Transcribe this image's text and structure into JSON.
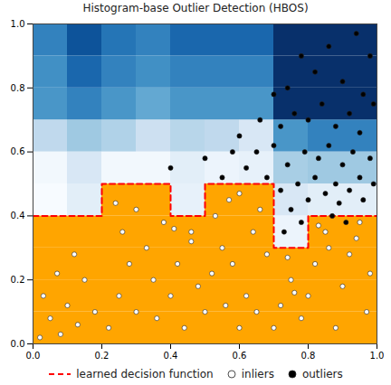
{
  "chart_data": {
    "type": "scatter",
    "title": "Histogram-base Outlier Detection (HBOS)",
    "xlim": [
      0,
      1
    ],
    "ylim": [
      0,
      1
    ],
    "xticks": [
      {
        "value": 0,
        "label": "0.0"
      },
      {
        "value": 0.2,
        "label": "0.2"
      },
      {
        "value": 0.4,
        "label": "0.4"
      },
      {
        "value": 0.6,
        "label": "0.6"
      },
      {
        "value": 0.8,
        "label": "0.8"
      },
      {
        "value": 1,
        "label": "1.0"
      }
    ],
    "yticks": [
      {
        "value": 0,
        "label": "0.0"
      },
      {
        "value": 0.2,
        "label": "0.2"
      },
      {
        "value": 0.4,
        "label": "0.4"
      },
      {
        "value": 0.6,
        "label": "0.6"
      },
      {
        "value": 0.8,
        "label": "0.8"
      },
      {
        "value": 1,
        "label": "1.0"
      }
    ],
    "grid": false,
    "cells": {
      "x_edges": [
        0,
        0.1,
        0.2,
        0.3,
        0.4,
        0.5,
        0.6,
        0.7,
        0.8,
        0.9,
        1
      ],
      "y_edges": [
        0,
        0.1,
        0.2,
        0.3,
        0.4,
        0.5,
        0.6,
        0.7,
        0.8,
        0.9,
        1
      ],
      "threshold": 3,
      "values": [
        [
          1,
          1,
          1,
          1,
          1,
          1,
          1,
          1,
          1,
          1
        ],
        [
          1,
          1,
          1,
          1,
          1,
          1,
          1,
          1.5,
          1,
          1
        ],
        [
          1.5,
          1.5,
          1.5,
          1.5,
          1.5,
          1.5,
          1.5,
          2,
          1.5,
          1.5
        ],
        [
          2,
          2,
          2,
          2,
          2,
          2,
          2,
          3.4,
          2,
          2
        ],
        [
          3.2,
          3.6,
          2.5,
          2.5,
          3.5,
          2.5,
          2.5,
          3.8,
          3.6,
          3.6
        ],
        [
          3.3,
          3.8,
          3.3,
          3.3,
          3.6,
          3.4,
          3.5,
          4.5,
          4.6,
          4.6
        ],
        [
          4.2,
          4.6,
          4.4,
          4.0,
          4.3,
          4.2,
          3.8,
          5.5,
          5.8,
          5.8
        ],
        [
          5.5,
          5.8,
          5.5,
          5.2,
          5.5,
          5.5,
          5.5,
          7,
          7,
          7
        ],
        [
          5.6,
          6.2,
          5.8,
          5.6,
          5.8,
          5.8,
          5.8,
          7,
          7,
          7
        ],
        [
          5.8,
          6.5,
          6.0,
          5.8,
          6.2,
          6.2,
          6.2,
          7,
          7,
          7
        ]
      ]
    },
    "series": [
      {
        "name": "learned decision function",
        "type": "line",
        "color": "red",
        "line_style": "dashed",
        "x": [
          0,
          0.2,
          0.2,
          0.4,
          0.4,
          0.5,
          0.5,
          0.7,
          0.7,
          0.8,
          0.8,
          1
        ],
        "y": [
          0.4,
          0.4,
          0.5,
          0.5,
          0.4,
          0.4,
          0.5,
          0.5,
          0.3,
          0.3,
          0.4,
          0.4
        ]
      },
      {
        "name": "inliers",
        "type": "scatter",
        "color": "white",
        "marker": "circle",
        "x": [
          0.02,
          0.05,
          0.08,
          0.1,
          0.13,
          0.03,
          0.15,
          0.12,
          0.18,
          0.07,
          0.22,
          0.25,
          0.28,
          0.3,
          0.26,
          0.33,
          0.35,
          0.38,
          0.3,
          0.24,
          0.36,
          0.4,
          0.42,
          0.44,
          0.46,
          0.48,
          0.41,
          0.5,
          0.52,
          0.55,
          0.53,
          0.57,
          0.6,
          0.62,
          0.58,
          0.64,
          0.66,
          0.6,
          0.68,
          0.65,
          0.7,
          0.72,
          0.75,
          0.74,
          0.78,
          0.8,
          0.82,
          0.85,
          0.88,
          0.9,
          0.92,
          0.95,
          0.97,
          0.98,
          0.86,
          0.94,
          0.83,
          0.76,
          0.56,
          0.46
        ],
        "y": [
          0.02,
          0.08,
          0.03,
          0.12,
          0.06,
          0.15,
          0.2,
          0.28,
          0.1,
          0.22,
          0.05,
          0.15,
          0.25,
          0.1,
          0.35,
          0.3,
          0.2,
          0.38,
          0.42,
          0.44,
          0.08,
          0.15,
          0.25,
          0.05,
          0.32,
          0.18,
          0.36,
          0.1,
          0.22,
          0.3,
          0.4,
          0.45,
          0.05,
          0.15,
          0.25,
          0.35,
          0.42,
          0.47,
          0.28,
          0.1,
          0.05,
          0.12,
          0.2,
          0.27,
          0.08,
          0.15,
          0.25,
          0.35,
          0.05,
          0.18,
          0.28,
          0.38,
          0.1,
          0.22,
          0.3,
          0.33,
          0.37,
          0.16,
          0.12,
          0.35
        ]
      },
      {
        "name": "outliers",
        "type": "scatter",
        "color": "black",
        "marker": "circle",
        "x": [
          0.62,
          0.65,
          0.68,
          0.7,
          0.72,
          0.74,
          0.75,
          0.77,
          0.78,
          0.79,
          0.8,
          0.82,
          0.83,
          0.85,
          0.86,
          0.88,
          0.89,
          0.9,
          0.92,
          0.93,
          0.95,
          0.96,
          0.98,
          0.99,
          0.72,
          0.76,
          0.8,
          0.84,
          0.88,
          0.92,
          0.96,
          0.74,
          0.82,
          0.9,
          0.98,
          0.86,
          0.94,
          0.6,
          0.58,
          0.55,
          0.4,
          0.5,
          0.66,
          0.7,
          0.78,
          0.95,
          0.99,
          0.87,
          0.91,
          0.73
        ],
        "y": [
          0.55,
          0.6,
          0.52,
          0.62,
          0.48,
          0.56,
          0.42,
          0.5,
          0.38,
          0.6,
          0.45,
          0.52,
          0.58,
          0.47,
          0.62,
          0.5,
          0.44,
          0.56,
          0.48,
          0.6,
          0.52,
          0.45,
          0.58,
          0.5,
          0.68,
          0.72,
          0.7,
          0.75,
          0.68,
          0.72,
          0.78,
          0.8,
          0.85,
          0.82,
          0.9,
          0.93,
          0.97,
          0.65,
          0.6,
          0.52,
          0.55,
          0.58,
          0.7,
          0.78,
          0.9,
          0.66,
          0.75,
          0.4,
          0.38,
          0.35
        ]
      }
    ]
  }
}
